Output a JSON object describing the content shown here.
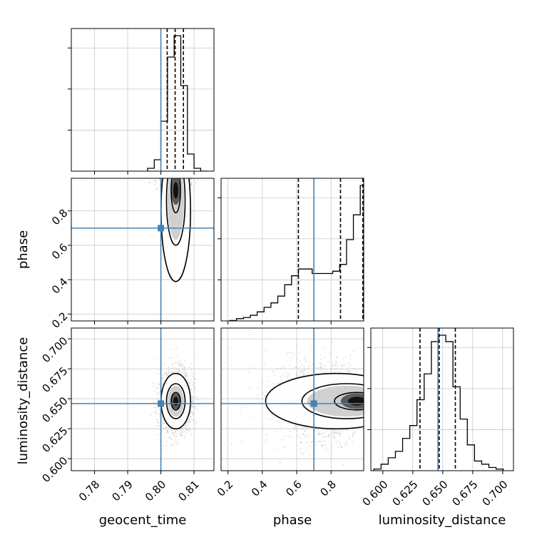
{
  "chart_data": {
    "type": "corner",
    "parameters": [
      {
        "name": "geocent_time",
        "range": [
          0.773,
          0.816
        ],
        "ticks": [
          "0.78",
          "0.79",
          "0.80",
          "0.81"
        ],
        "tick_values": [
          0.78,
          0.79,
          0.8,
          0.81
        ],
        "truth": 0.8
      },
      {
        "name": "phase",
        "range": [
          0.16,
          0.99
        ],
        "ticks": [
          "0.2",
          "0.4",
          "0.6",
          "0.8"
        ],
        "tick_values": [
          0.2,
          0.4,
          0.6,
          0.8
        ],
        "truth": 0.7
      },
      {
        "name": "luminosity_distance",
        "range": [
          0.59,
          0.709
        ],
        "ticks": [
          "0.600",
          "0.625",
          "0.650",
          "0.675",
          "0.700"
        ],
        "tick_values": [
          0.6,
          0.625,
          0.65,
          0.675,
          0.7
        ],
        "truth": 0.646
      }
    ],
    "truth_color": "#4682b4",
    "grid": true,
    "histograms": [
      {
        "parameter": "geocent_time",
        "bin_edges": [
          0.796,
          0.798,
          0.8,
          0.802,
          0.804,
          0.806,
          0.808,
          0.81,
          0.812,
          0.814
        ],
        "counts": [
          0.02,
          0.08,
          0.35,
          0.8,
          0.95,
          0.6,
          0.12,
          0.02,
          0.0
        ],
        "quantiles": [
          0.8019,
          0.8043,
          0.8068
        ]
      },
      {
        "parameter": "phase",
        "bin_edges": [
          0.21,
          0.25,
          0.29,
          0.33,
          0.37,
          0.41,
          0.45,
          0.49,
          0.53,
          0.57,
          0.61,
          0.65,
          0.69,
          0.73,
          0.77,
          0.81,
          0.85,
          0.89,
          0.93,
          0.97,
          0.99
        ],
        "counts": [
          0.002,
          0.01,
          0.015,
          0.025,
          0.04,
          0.06,
          0.08,
          0.11,
          0.16,
          0.2,
          0.23,
          0.23,
          0.21,
          0.21,
          0.21,
          0.22,
          0.25,
          0.36,
          0.47,
          0.6
        ],
        "quantiles": [
          0.61,
          0.855,
          0.985
        ]
      },
      {
        "parameter": "luminosity_distance",
        "bin_edges": [
          0.5925,
          0.5985,
          0.6045,
          0.6105,
          0.6165,
          0.6225,
          0.6285,
          0.6345,
          0.6405,
          0.6465,
          0.6525,
          0.6585,
          0.6645,
          0.6705,
          0.6765,
          0.6825,
          0.6885,
          0.6945,
          0.7005
        ],
        "counts": [
          0.005,
          0.02,
          0.04,
          0.06,
          0.1,
          0.14,
          0.22,
          0.3,
          0.4,
          0.42,
          0.4,
          0.26,
          0.16,
          0.08,
          0.03,
          0.02,
          0.01,
          0.005
        ],
        "quantiles": [
          0.631,
          0.647,
          0.6605
        ]
      }
    ],
    "density_panels": [
      {
        "x": "geocent_time",
        "y": "phase",
        "center": [
          0.8045,
          0.92
        ],
        "spread": [
          0.0025,
          0.17
        ],
        "skew": "tail-toward-low-y"
      },
      {
        "x": "geocent_time",
        "y": "luminosity_distance",
        "center": [
          0.8045,
          0.648
        ],
        "spread": [
          0.0025,
          0.013
        ]
      },
      {
        "x": "phase",
        "y": "luminosity_distance",
        "center": [
          0.95,
          0.648
        ],
        "spread": [
          0.17,
          0.013
        ],
        "skew": "tail-toward-low-x"
      }
    ],
    "layout": "lower-triangle"
  }
}
